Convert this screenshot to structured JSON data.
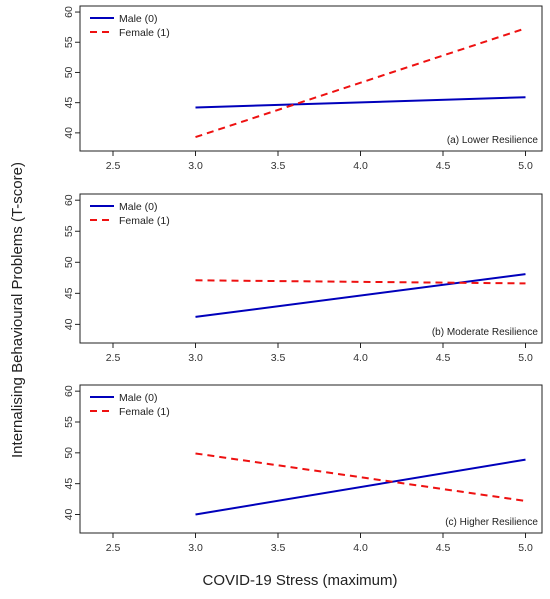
{
  "chart_data": {
    "type": "line",
    "xlabel": "COVID-19 Stress (maximum)",
    "ylabel": "Internalising Behavioural Problems (T-score)",
    "xlim": [
      2.3,
      5.1
    ],
    "ylim": [
      37,
      61
    ],
    "x_ticks": [
      2.5,
      3.0,
      3.5,
      4.0,
      4.5,
      5.0
    ],
    "x_tick_labels": [
      "2.5",
      "3.0",
      "3.5",
      "4.0",
      "4.5",
      "5.0"
    ],
    "y_ticks": [
      40,
      45,
      50,
      55,
      60
    ],
    "y_tick_labels": [
      "40",
      "45",
      "50",
      "55",
      "60"
    ],
    "legend": {
      "placement": "top-left",
      "entries": [
        {
          "label": "Male (0)",
          "color": "#0000bb",
          "style": "solid"
        },
        {
          "label": "Female (1)",
          "color": "#ee1111",
          "style": "dashed"
        }
      ]
    },
    "panels": [
      {
        "label": "(a) Lower Resilience",
        "series": [
          {
            "name": "Male (0)",
            "x": [
              3.0,
              5.0
            ],
            "y": [
              44.2,
              45.9
            ]
          },
          {
            "name": "Female (1)",
            "x": [
              3.0,
              5.0
            ],
            "y": [
              39.3,
              57.3
            ]
          }
        ]
      },
      {
        "label": "(b) Moderate Resilience",
        "series": [
          {
            "name": "Male (0)",
            "x": [
              3.0,
              5.0
            ],
            "y": [
              41.2,
              48.1
            ]
          },
          {
            "name": "Female (1)",
            "x": [
              3.0,
              5.0
            ],
            "y": [
              47.1,
              46.6
            ]
          }
        ]
      },
      {
        "label": "(c) Higher Resilience",
        "series": [
          {
            "name": "Male (0)",
            "x": [
              3.0,
              5.0
            ],
            "y": [
              40.0,
              48.9
            ]
          },
          {
            "name": "Female (1)",
            "x": [
              3.0,
              5.0
            ],
            "y": [
              49.9,
              42.2
            ]
          }
        ]
      }
    ]
  }
}
